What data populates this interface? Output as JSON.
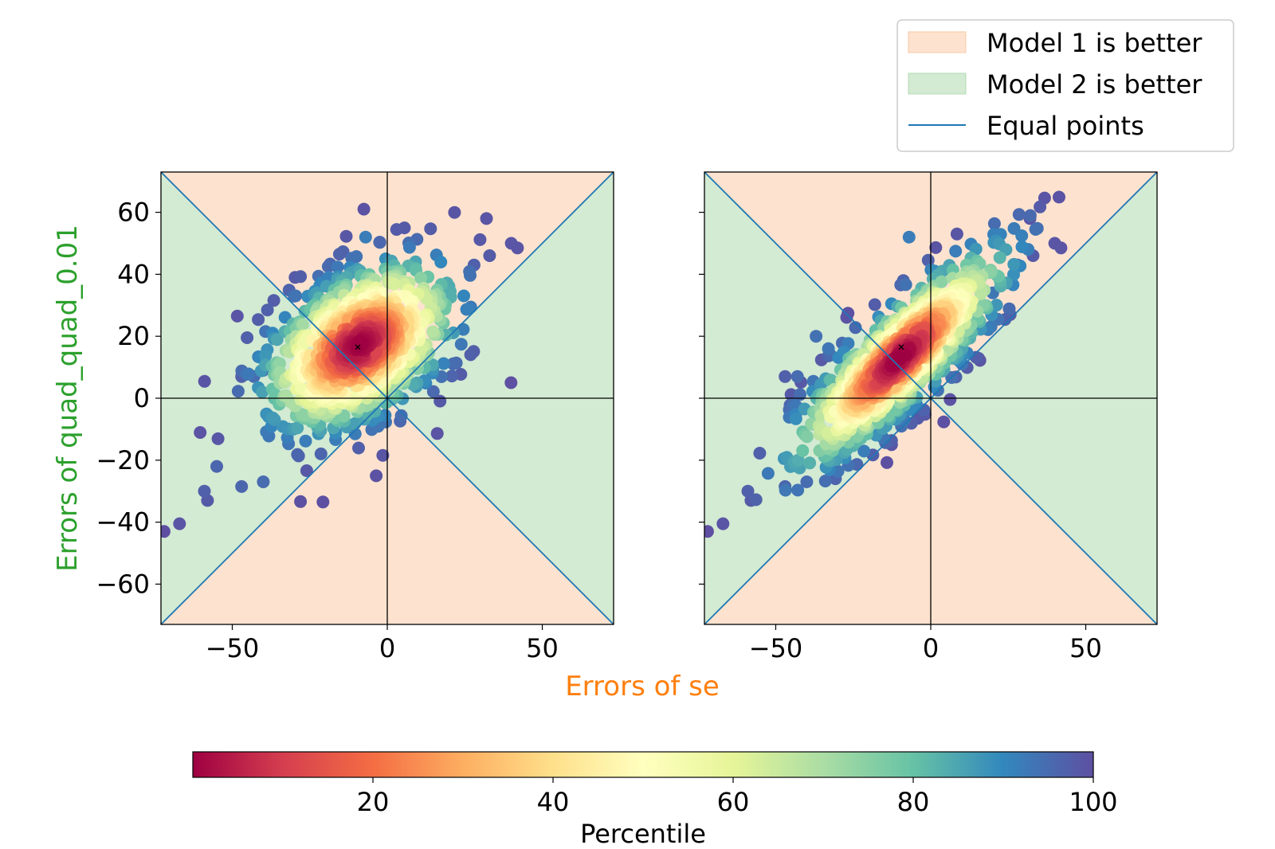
{
  "colors": {
    "model1_region": "#fde3cf",
    "model2_region": "#d3ead3",
    "equal_line": "#1f77b4",
    "axis_line": "#000000",
    "xlabel_color": "#ff7f0e",
    "ylabel_color": "#2ca02c",
    "marker": "#000000"
  },
  "legend": {
    "placement": "top-right",
    "items": [
      {
        "label": "Model 1 is better",
        "kind": "patch",
        "color": "#fde3cf"
      },
      {
        "label": "Model 2 is better",
        "kind": "patch",
        "color": "#d3ead3"
      },
      {
        "label": "Equal points",
        "kind": "line",
        "color": "#1f77b4"
      }
    ]
  },
  "colorbar": {
    "label": "Percentile",
    "colormap": "Spectral",
    "range": [
      0,
      100
    ],
    "ticks": [
      "20",
      "40",
      "60",
      "80",
      "100"
    ],
    "tick_values": [
      20,
      40,
      60,
      80,
      100
    ]
  },
  "chart_data": [
    {
      "type": "scatter",
      "panel": "left",
      "xlabel": "Errors of se",
      "ylabel": "Errors of quad_quad_0.01",
      "xlim": [
        -73,
        73
      ],
      "ylim": [
        -73,
        73
      ],
      "xticks": [
        "−50",
        "0",
        "50"
      ],
      "xtick_values": [
        -50,
        0,
        50
      ],
      "yticks": [
        "60",
        "40",
        "20",
        "0",
        "−20",
        "−40",
        "−60"
      ],
      "ytick_values": [
        60,
        40,
        20,
        0,
        -20,
        -40,
        -60
      ],
      "median_marker": {
        "x": -9.5,
        "y": 16.5
      },
      "cloud": {
        "center_x": -9,
        "center_y": 17,
        "slope": 0.75,
        "spread_along": 20,
        "spread_across": 12
      },
      "outlier_points": [
        {
          "x": -72,
          "y": -43,
          "p": 100
        },
        {
          "x": -67,
          "y": -40.5,
          "p": 99
        },
        {
          "x": -58,
          "y": -33,
          "p": 98
        },
        {
          "x": -59,
          "y": -30,
          "p": 97
        },
        {
          "x": -47,
          "y": -28.5,
          "p": 96
        },
        {
          "x": -40,
          "y": -27,
          "p": 95
        },
        {
          "x": -55,
          "y": -22,
          "p": 96
        },
        {
          "x": -47,
          "y": 7,
          "p": 97
        },
        {
          "x": -43,
          "y": 7,
          "p": 95
        },
        {
          "x": -40,
          "y": 9,
          "p": 94
        },
        {
          "x": -37,
          "y": 21,
          "p": 90
        },
        {
          "x": -7,
          "y": 52,
          "p": 92
        },
        {
          "x": 32,
          "y": 58,
          "p": 99
        },
        {
          "x": 40,
          "y": 50,
          "p": 99
        },
        {
          "x": 42,
          "y": 48.5,
          "p": 99
        },
        {
          "x": 33,
          "y": 46,
          "p": 98
        },
        {
          "x": 28,
          "y": 43,
          "p": 97
        },
        {
          "x": 20,
          "y": 34,
          "p": 93
        }
      ]
    },
    {
      "type": "scatter",
      "panel": "right",
      "xlabel": "",
      "ylabel": "",
      "xlim": [
        -73,
        73
      ],
      "ylim": [
        -73,
        73
      ],
      "xticks": [
        "−50",
        "0",
        "50"
      ],
      "xtick_values": [
        -50,
        0,
        50
      ],
      "median_marker": {
        "x": -9.5,
        "y": 16.5
      },
      "cloud": {
        "center_x": -10,
        "center_y": 13,
        "slope": 1.0,
        "spread_along": 26,
        "spread_across": 7
      },
      "outlier_points": [
        {
          "x": -72,
          "y": -43,
          "p": 100
        },
        {
          "x": -67,
          "y": -40.5,
          "p": 99
        },
        {
          "x": -58,
          "y": -33,
          "p": 98
        },
        {
          "x": -59,
          "y": -30,
          "p": 97
        },
        {
          "x": -47,
          "y": -28.5,
          "p": 96
        },
        {
          "x": -40,
          "y": -27,
          "p": 95
        },
        {
          "x": -47,
          "y": 7,
          "p": 97
        },
        {
          "x": -43,
          "y": 7,
          "p": 95
        },
        {
          "x": -37,
          "y": 20,
          "p": 94
        },
        {
          "x": -33,
          "y": 16,
          "p": 93
        },
        {
          "x": -7,
          "y": 52,
          "p": 92
        },
        {
          "x": 32,
          "y": 58,
          "p": 99
        },
        {
          "x": 40,
          "y": 50,
          "p": 99
        },
        {
          "x": 42,
          "y": 48.5,
          "p": 99
        },
        {
          "x": 33,
          "y": 46,
          "p": 98
        },
        {
          "x": 28,
          "y": 43,
          "p": 97
        },
        {
          "x": 20,
          "y": 34,
          "p": 93
        }
      ]
    }
  ]
}
